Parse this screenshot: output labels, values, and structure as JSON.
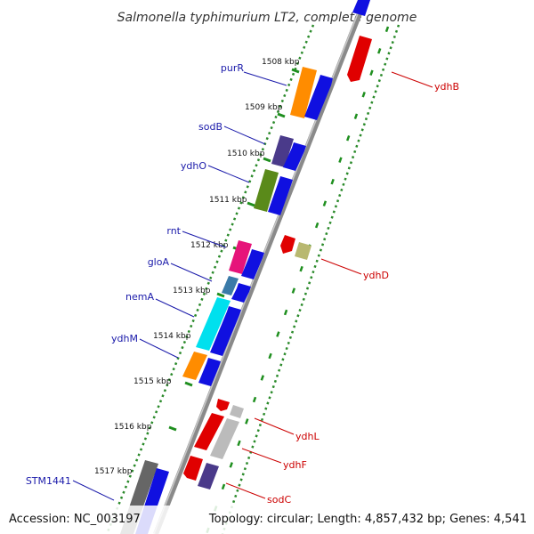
{
  "title": "Salmonella typhimurium LT2, complete genome",
  "accession_text": "Accession: NC_003197",
  "topology_text": "Topology: circular; Length: 4,857,432 bp; Genes: 4,541",
  "ticks": [
    "1508 kbp",
    "1509 kbp",
    "1510 kbp",
    "1511 kbp",
    "1512 kbp",
    "1513 kbp",
    "1514 kbp",
    "1515 kbp",
    "1516 kbp",
    "1517 kbp"
  ],
  "genes_forward": [
    "purR",
    "sodB",
    "ydhO",
    "rnt",
    "gloA",
    "nemA",
    "ydhM",
    "STM1441"
  ],
  "genes_reverse": [
    "ydhB",
    "ydhD",
    "ydhL",
    "ydhF",
    "sodC"
  ],
  "colors": {
    "forward_label": "#1a1aaa",
    "reverse_label": "#cc0000",
    "cds_blue": "#1010e0",
    "dotted_green": "#2a8a2a",
    "dashed_green": "#1f8f1f",
    "backbone": "#8c8c8c"
  }
}
